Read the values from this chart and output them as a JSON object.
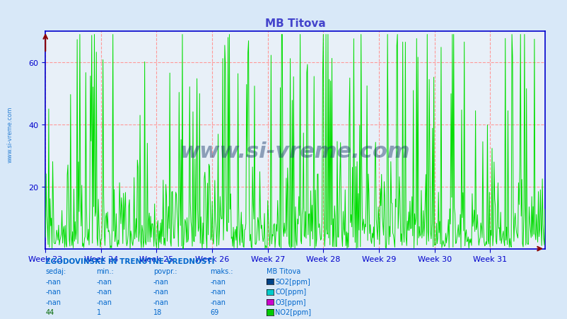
{
  "title": "MB Titova",
  "bg_color": "#d8e8f8",
  "plot_bg_color": "#e8f0f8",
  "line_color_no2": "#00dd00",
  "axis_color": "#0000cc",
  "grid_color": "#ff9999",
  "text_color": "#0066cc",
  "yticks": [
    20,
    40,
    60
  ],
  "ylim": [
    0,
    70
  ],
  "weeks": [
    "Week 23",
    "Week 24",
    "Week 25",
    "Week 26",
    "Week 27",
    "Week 28",
    "Week 29",
    "Week 30",
    "Week 31"
  ],
  "week_positions": [
    0,
    84,
    168,
    252,
    336,
    420,
    504,
    588,
    672
  ],
  "n_points": 756,
  "seed": 42,
  "title_color": "#4444cc",
  "title_fontsize": 11,
  "legend_items": [
    {
      "label": "SO2[ppm]",
      "color": "#004488"
    },
    {
      "label": "CO[ppm]",
      "color": "#00cccc"
    },
    {
      "label": "O3[ppm]",
      "color": "#cc00cc"
    },
    {
      "label": "NO2[ppm]",
      "color": "#00cc00"
    }
  ],
  "table_header": "ZGODOVINSKE IN TRENUTNE VREDNOSTI",
  "table_cols": [
    "sedaj:",
    "min.:",
    "povpr.:",
    "maks.:",
    "MB Titova"
  ],
  "table_rows": [
    [
      "-nan",
      "-nan",
      "-nan",
      "-nan",
      "SO2[ppm]"
    ],
    [
      "-nan",
      "-nan",
      "-nan",
      "-nan",
      "CO[ppm]"
    ],
    [
      "-nan",
      "-nan",
      "-nan",
      "-nan",
      "O3[ppm]"
    ],
    [
      "44",
      "1",
      "18",
      "69",
      "NO2[ppm]"
    ]
  ],
  "watermark": "www.si-vreme.com",
  "watermark_color": "#1a3a6a",
  "sidebar_text": "www.si-vreme.com"
}
